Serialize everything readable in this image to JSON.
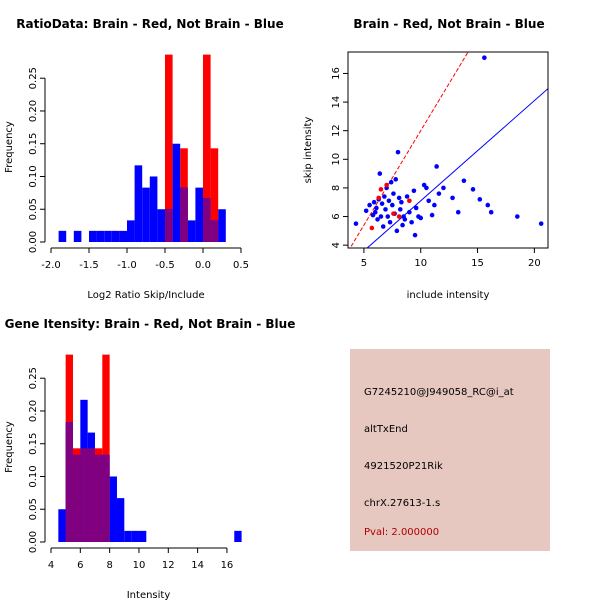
{
  "chart_data": [
    {
      "type": "histogram",
      "title": "RatioData: Brain - Red, Not Brain - Blue",
      "xlabel": "Log2 Ratio Skip/Include",
      "ylabel": "Frequency",
      "xlim": [
        -2.0,
        0.5
      ],
      "ylim": [
        0,
        0.29
      ],
      "xticks": [
        "-2.0",
        "-1.5",
        "-1.0",
        "-0.5",
        "0.0",
        "0.5"
      ],
      "yticks": [
        "0.00",
        "0.05",
        "0.10",
        "0.15",
        "0.20",
        "0.25"
      ],
      "bin_width": 0.1,
      "series": [
        {
          "name": "Not Brain",
          "color": "#0000ff",
          "bins": [
            [
              -1.9,
              0.017
            ],
            [
              -1.7,
              0.017
            ],
            [
              -1.5,
              0.017
            ],
            [
              -1.4,
              0.017
            ],
            [
              -1.3,
              0.017
            ],
            [
              -1.2,
              0.017
            ],
            [
              -1.1,
              0.017
            ],
            [
              -1.0,
              0.033
            ],
            [
              -0.9,
              0.117
            ],
            [
              -0.8,
              0.083
            ],
            [
              -0.7,
              0.1
            ],
            [
              -0.6,
              0.05
            ],
            [
              -0.5,
              0.05
            ],
            [
              -0.4,
              0.15
            ],
            [
              -0.3,
              0.083
            ],
            [
              -0.2,
              0.033
            ],
            [
              -0.1,
              0.083
            ],
            [
              0.0,
              0.067
            ],
            [
              0.1,
              0.033
            ],
            [
              0.2,
              0.05
            ]
          ]
        },
        {
          "name": "Brain",
          "color": "#ff0000",
          "bins": [
            [
              -0.5,
              0.286
            ],
            [
              -0.3,
              0.143
            ],
            [
              0.0,
              0.286
            ],
            [
              0.1,
              0.143
            ]
          ]
        }
      ]
    },
    {
      "type": "scatter",
      "title": "Brain - Red, Not Brain - Blue",
      "xlabel": "include intensity",
      "ylabel": "skip intensity",
      "xlim": [
        3.6,
        21.2
      ],
      "ylim": [
        3.8,
        17.5
      ],
      "xticks": [
        "5",
        "10",
        "15",
        "20"
      ],
      "yticks": [
        "4",
        "6",
        "8",
        "10",
        "12",
        "14",
        "16"
      ],
      "lines": [
        {
          "name": "brain-fit",
          "color": "#ff0000",
          "dashed": true,
          "slope": 1.32,
          "intercept": -1.2
        },
        {
          "name": "not-brain-fit",
          "color": "#0000ff",
          "dashed": false,
          "slope": 0.7,
          "intercept": 0.1
        }
      ],
      "series": [
        {
          "name": "Not Brain",
          "color": "#0000ff",
          "points": [
            [
              4.3,
              5.5
            ],
            [
              5.2,
              6.4
            ],
            [
              5.5,
              6.8
            ],
            [
              5.8,
              6.1
            ],
            [
              5.9,
              7.0
            ],
            [
              6.0,
              6.3
            ],
            [
              6.1,
              6.6
            ],
            [
              6.2,
              5.8
            ],
            [
              6.3,
              7.2
            ],
            [
              6.4,
              9.0
            ],
            [
              6.5,
              6.0
            ],
            [
              6.6,
              6.9
            ],
            [
              6.7,
              5.3
            ],
            [
              6.8,
              7.4
            ],
            [
              6.9,
              6.5
            ],
            [
              7.0,
              8.0
            ],
            [
              7.1,
              6.0
            ],
            [
              7.2,
              7.1
            ],
            [
              7.3,
              5.6
            ],
            [
              7.4,
              8.4
            ],
            [
              7.5,
              6.8
            ],
            [
              7.6,
              7.6
            ],
            [
              7.7,
              6.2
            ],
            [
              7.8,
              8.6
            ],
            [
              7.9,
              5.0
            ],
            [
              8.0,
              10.5
            ],
            [
              8.1,
              7.3
            ],
            [
              8.2,
              6.5
            ],
            [
              8.3,
              7.0
            ],
            [
              8.4,
              5.4
            ],
            [
              8.5,
              6.0
            ],
            [
              8.6,
              5.8
            ],
            [
              8.8,
              7.4
            ],
            [
              9.0,
              6.3
            ],
            [
              9.2,
              5.6
            ],
            [
              9.4,
              7.8
            ],
            [
              9.5,
              4.7
            ],
            [
              9.6,
              6.6
            ],
            [
              9.8,
              6.0
            ],
            [
              10.0,
              5.9
            ],
            [
              10.3,
              8.2
            ],
            [
              10.5,
              8.0
            ],
            [
              10.7,
              7.1
            ],
            [
              11.0,
              6.1
            ],
            [
              11.2,
              6.8
            ],
            [
              11.4,
              9.5
            ],
            [
              11.6,
              7.6
            ],
            [
              12.0,
              8.0
            ],
            [
              12.8,
              7.3
            ],
            [
              13.3,
              6.3
            ],
            [
              13.8,
              8.5
            ],
            [
              14.6,
              7.9
            ],
            [
              15.2,
              7.2
            ],
            [
              15.6,
              17.1
            ],
            [
              15.9,
              6.8
            ],
            [
              16.2,
              6.3
            ],
            [
              18.5,
              6.0
            ],
            [
              20.6,
              5.5
            ]
          ]
        },
        {
          "name": "Brain",
          "color": "#ff0000",
          "points": [
            [
              5.7,
              5.2
            ],
            [
              6.3,
              7.3
            ],
            [
              6.5,
              7.9
            ],
            [
              7.0,
              8.2
            ],
            [
              7.6,
              6.2
            ],
            [
              8.1,
              6.0
            ],
            [
              9.0,
              7.1
            ]
          ]
        }
      ]
    },
    {
      "type": "histogram",
      "title": "Gene Itensity: Brain - Red, Not Brain - Blue",
      "xlabel": "Intensity",
      "ylabel": "Frequency",
      "xlim": [
        4,
        17.3
      ],
      "ylim": [
        0,
        0.29
      ],
      "xticks": [
        "4",
        "6",
        "8",
        "10",
        "12",
        "14",
        "16"
      ],
      "yticks": [
        "0.00",
        "0.05",
        "0.10",
        "0.15",
        "0.20",
        "0.25"
      ],
      "bin_width": 0.5,
      "series": [
        {
          "name": "Not Brain",
          "color": "#0000ff",
          "bins": [
            [
              4.5,
              0.05
            ],
            [
              5.0,
              0.183
            ],
            [
              5.5,
              0.133
            ],
            [
              6.0,
              0.217
            ],
            [
              6.5,
              0.167
            ],
            [
              7.0,
              0.133
            ],
            [
              7.5,
              0.133
            ],
            [
              8.0,
              0.1
            ],
            [
              8.5,
              0.067
            ],
            [
              9.0,
              0.017
            ],
            [
              9.5,
              0.017
            ],
            [
              10.0,
              0.017
            ],
            [
              16.5,
              0.017
            ]
          ]
        },
        {
          "name": "Brain",
          "color": "#ff0000",
          "bins": [
            [
              5.0,
              0.286
            ],
            [
              5.5,
              0.143
            ],
            [
              6.0,
              0.143
            ],
            [
              6.5,
              0.143
            ],
            [
              7.0,
              0.143
            ],
            [
              7.5,
              0.286
            ]
          ]
        }
      ]
    }
  ],
  "info": {
    "probe": "G7245210@J949058_RC@i_at",
    "event": "altTxEnd",
    "gene": "4921520P21Rik",
    "location": "chrX.27613-1.s",
    "pval": "Pval: 2.000000"
  }
}
